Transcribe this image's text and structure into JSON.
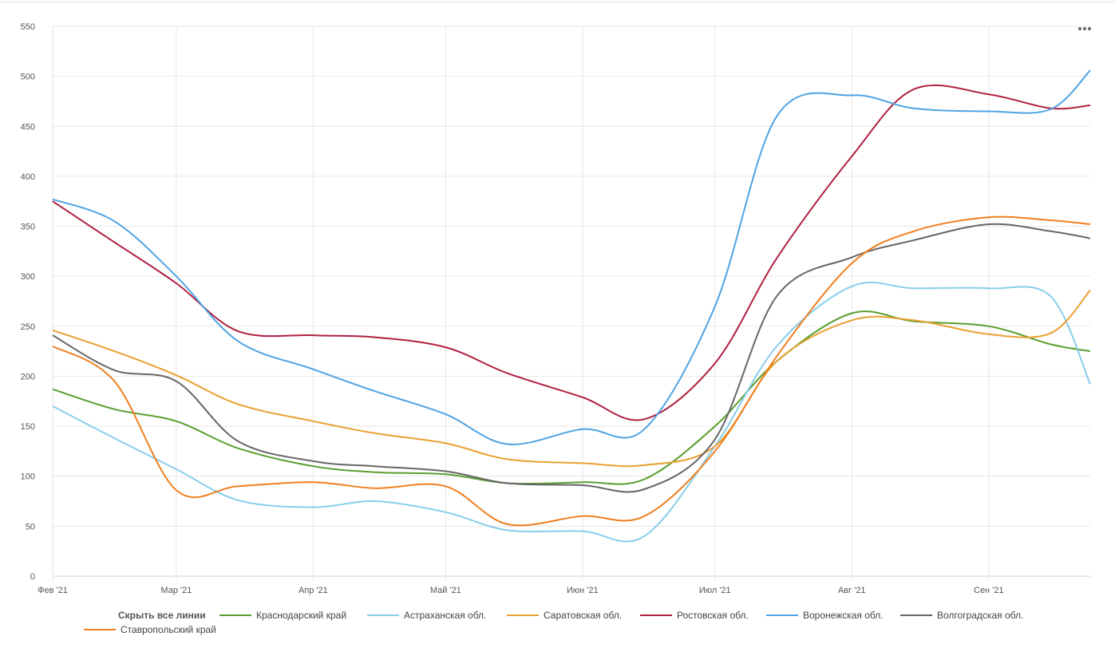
{
  "controls": {
    "hide_all": "Скрыть все линии",
    "menu_icon": "more-horizontal-icon"
  },
  "chart_data": {
    "type": "line",
    "ylim": [
      0,
      550
    ],
    "y_ticks": [
      "0",
      "50",
      "100",
      "150",
      "200",
      "250",
      "300",
      "350",
      "400",
      "450",
      "500",
      "550"
    ],
    "x_ticks": [
      "Фев '21",
      "Мар '21",
      "Апр '21",
      "Май '21",
      "Июн '21",
      "Июл '21",
      "Авг '21",
      "Сен '21"
    ],
    "x_tick_dates": [
      "2021-02-01",
      "2021-03-01",
      "2021-04-01",
      "2021-05-01",
      "2021-06-01",
      "2021-07-01",
      "2021-08-01",
      "2021-09-01"
    ],
    "xlim": [
      "2021-02-01",
      "2021-09-24"
    ],
    "grid": true,
    "legend_position": "bottom",
    "x": [
      "2021-02-01",
      "2021-02-15",
      "2021-03-01",
      "2021-03-15",
      "2021-04-01",
      "2021-04-15",
      "2021-05-01",
      "2021-05-15",
      "2021-06-01",
      "2021-06-15",
      "2021-07-01",
      "2021-07-15",
      "2021-08-01",
      "2021-08-15",
      "2021-09-01",
      "2021-09-15",
      "2021-09-24"
    ],
    "series": [
      {
        "name": "Краснодарский край",
        "color": "#5a9e2f",
        "values": [
          187,
          167,
          155,
          128,
          110,
          104,
          102,
          93,
          94,
          97,
          150,
          215,
          263,
          255,
          250,
          232,
          225
        ]
      },
      {
        "name": "Астраханская обл.",
        "color": "#87ceeb",
        "values": [
          170,
          138,
          107,
          76,
          69,
          75,
          64,
          46,
          45,
          40,
          130,
          230,
          290,
          288,
          288,
          280,
          192
        ]
      },
      {
        "name": "Саратовская обл.",
        "color": "#e8a030",
        "values": [
          246,
          225,
          201,
          172,
          155,
          143,
          133,
          117,
          113,
          111,
          130,
          215,
          256,
          256,
          242,
          243,
          286
        ]
      },
      {
        "name": "Ростовская обл.",
        "color": "#b0203f",
        "values": [
          375,
          334,
          293,
          245,
          241,
          239,
          229,
          203,
          179,
          157,
          213,
          318,
          420,
          487,
          482,
          468,
          471
        ]
      },
      {
        "name": "Воронежская обл.",
        "color": "#4fa3e3",
        "values": [
          377,
          355,
          300,
          235,
          207,
          185,
          162,
          132,
          147,
          147,
          270,
          460,
          481,
          468,
          465,
          467,
          506
        ]
      },
      {
        "name": "Волгоградская обл.",
        "color": "#666666",
        "values": [
          241,
          206,
          195,
          135,
          115,
          110,
          105,
          93,
          91,
          87,
          137,
          280,
          319,
          336,
          352,
          345,
          338
        ]
      },
      {
        "name": "Ставропольский край",
        "color": "#ef7f1f",
        "values": [
          230,
          195,
          86,
          90,
          94,
          88,
          90,
          52,
          60,
          60,
          125,
          220,
          313,
          345,
          359,
          356,
          352
        ]
      }
    ]
  }
}
